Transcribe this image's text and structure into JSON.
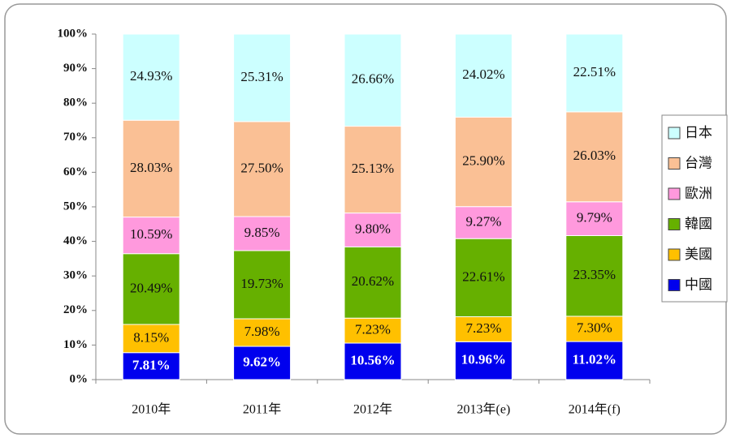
{
  "chart_data": {
    "type": "stacked_bar",
    "categories": [
      "2010年",
      "2011年",
      "2012年",
      "2013年(e)",
      "2014年(f)"
    ],
    "series": [
      {
        "name": "中國",
        "color": "#0000ee",
        "values": [
          7.81,
          9.62,
          10.56,
          10.96,
          11.02
        ],
        "value_labels": [
          "7.81%",
          "9.62%",
          "10.56%",
          "10.96%",
          "11.02%"
        ]
      },
      {
        "name": "美國",
        "color": "#ffc000",
        "values": [
          8.15,
          7.98,
          7.23,
          7.23,
          7.3
        ],
        "value_labels": [
          "8.15%",
          "7.98%",
          "7.23%",
          "7.23%",
          "7.30%"
        ]
      },
      {
        "name": "韓國",
        "color": "#66b000",
        "values": [
          20.49,
          19.73,
          20.62,
          22.61,
          23.35
        ],
        "value_labels": [
          "20.49%",
          "19.73%",
          "20.62%",
          "22.61%",
          "23.35%"
        ]
      },
      {
        "name": "歐洲",
        "color": "#ff99dd",
        "values": [
          10.59,
          9.85,
          9.8,
          9.27,
          9.79
        ],
        "value_labels": [
          "10.59%",
          "9.85%",
          "9.80%",
          "9.27%",
          "9.79%"
        ]
      },
      {
        "name": "台灣",
        "color": "#fac095",
        "values": [
          28.03,
          27.5,
          25.13,
          25.9,
          26.03
        ],
        "value_labels": [
          "28.03%",
          "27.50%",
          "25.13%",
          "25.90%",
          "26.03%"
        ]
      },
      {
        "name": "日本",
        "color": "#ccffff",
        "values": [
          24.93,
          25.31,
          26.66,
          24.02,
          22.51
        ],
        "value_labels": [
          "24.93%",
          "25.31%",
          "26.66%",
          "24.02%",
          "22.51%"
        ]
      }
    ],
    "ylim": [
      0,
      100
    ],
    "yticks": [
      {
        "value": 0,
        "label": "0%"
      },
      {
        "value": 10,
        "label": "10%"
      },
      {
        "value": 20,
        "label": "20%"
      },
      {
        "value": 30,
        "label": "30%"
      },
      {
        "value": 40,
        "label": "40%"
      },
      {
        "value": 50,
        "label": "50%"
      },
      {
        "value": 60,
        "label": "60%"
      },
      {
        "value": 70,
        "label": "70%"
      },
      {
        "value": 80,
        "label": "80%"
      },
      {
        "value": 90,
        "label": "90%"
      },
      {
        "value": 100,
        "label": "100%"
      }
    ],
    "grid": false,
    "legend": "right"
  }
}
